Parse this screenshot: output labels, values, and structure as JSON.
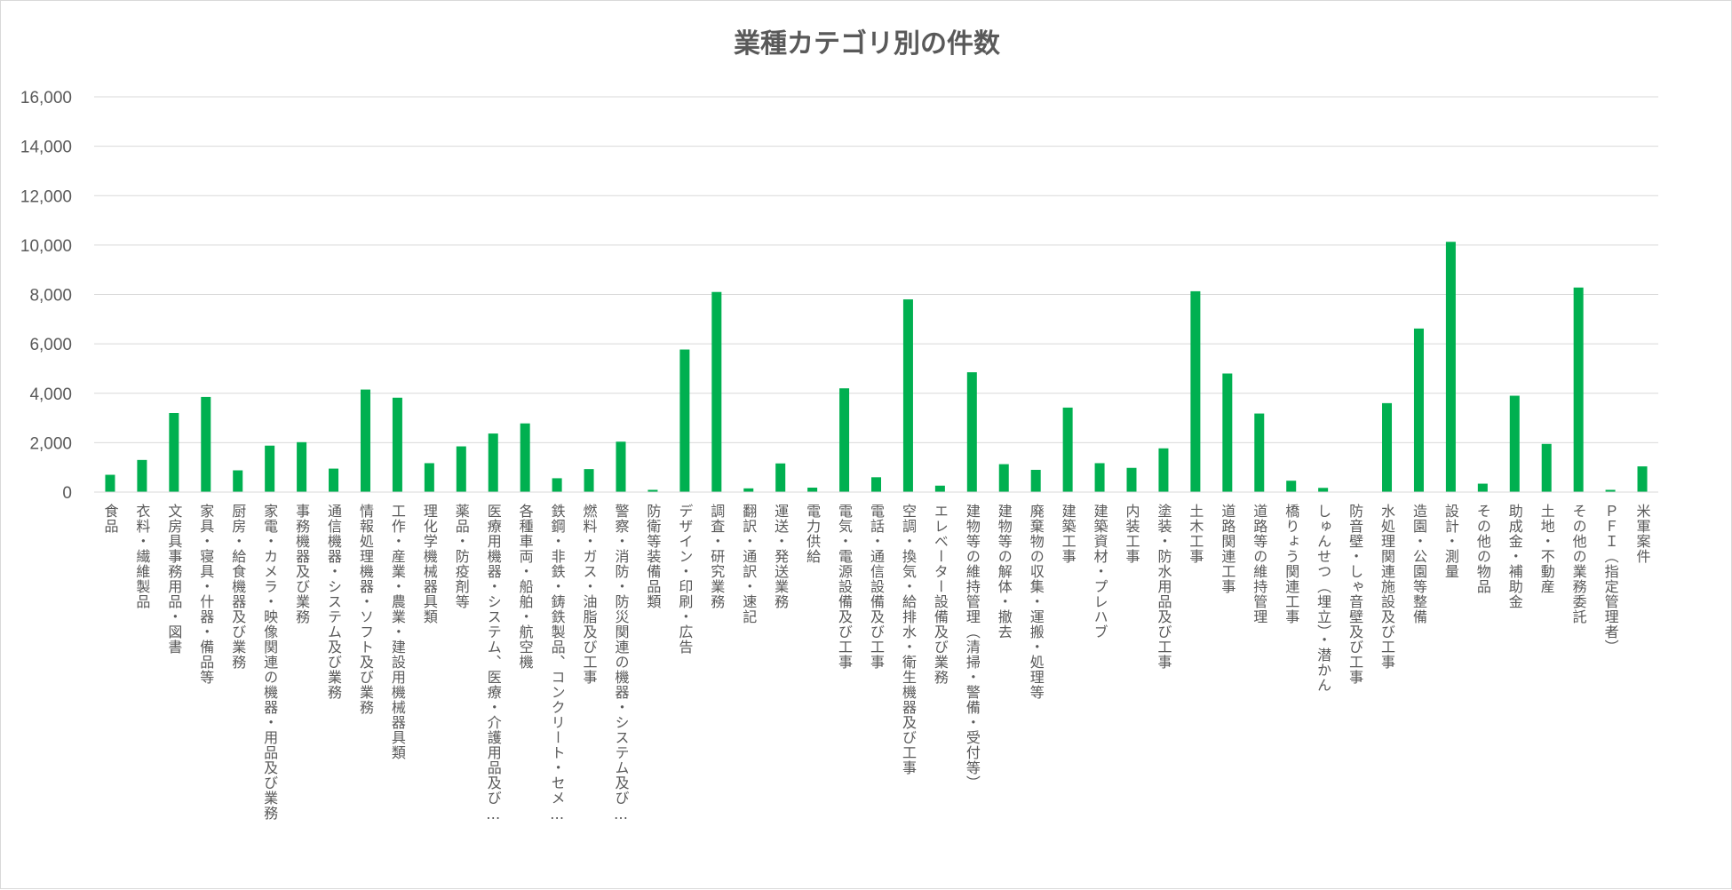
{
  "chart_data": {
    "type": "bar",
    "title": "業種カテゴリ別の件数",
    "xlabel": "",
    "ylabel": "",
    "ylim": [
      0,
      16000
    ],
    "yticks": [
      "0",
      "2,000",
      "4,000",
      "6,000",
      "8,000",
      "10,000",
      "12,000",
      "14,000",
      "16,000"
    ],
    "ytick_values": [
      0,
      2000,
      4000,
      6000,
      8000,
      10000,
      12000,
      14000,
      16000
    ],
    "grid": true,
    "legend": "none",
    "bar_color": "#00b050",
    "categories": [
      "食品",
      "衣料・繊維製品",
      "文房具事務用品・図書",
      "家具・寝具・什器・備品等",
      "厨房・給食機器及び業務",
      "家電・カメラ・映像関連の機器・用品及び業務",
      "事務機器及び業務",
      "通信機器・システム及び業務",
      "情報処理機器・ソフト及び業務",
      "工作・産業・農業・建設用機械器具類",
      "理化学機械器具類",
      "薬品・防疫剤等",
      "医療用機器・システム、医療・介護用品及び…",
      "各種車両・船舶・航空機",
      "鉄鋼・非鉄・鋳鉄製品、コンクリート・セメ…",
      "燃料・ガス・油脂及び工事",
      "警察・消防・防災関連の機器・システム及び…",
      "防衛等装備品類",
      "デザイン・印刷・広告",
      "調査・研究業務",
      "翻訳・通訳・速記",
      "運送・発送業務",
      "電力供給",
      "電気・電源設備及び工事",
      "電話・通信設備及び工事",
      "空調・換気・給排水・衛生機器及び工事",
      "エレベーター設備及び業務",
      "建物等の維持管理（清掃・警備・受付等）",
      "建物等の解体・撤去",
      "廃棄物の収集・運搬・処理等",
      "建築工事",
      "建築資材・プレハブ",
      "内装工事",
      "塗装・防水用品及び工事",
      "土木工事",
      "道路関連工事",
      "道路等の維持管理",
      "橋りょう関連工事",
      "しゅんせつ（埋立）・潜かん",
      "防音壁・しゃ音壁及び工事",
      "水処理関連施設及び工事",
      "造園・公園等整備",
      "設計・測量",
      "その他の物品",
      "助成金・補助金",
      "土地・不動産",
      "その他の業務委託",
      "ＰＦＩ（指定管理者）",
      "米軍案件"
    ],
    "values": [
      700,
      1300,
      3200,
      3850,
      880,
      1880,
      2020,
      950,
      4150,
      3820,
      1170,
      1850,
      2370,
      2780,
      560,
      930,
      2040,
      90,
      5770,
      8100,
      150,
      1160,
      180,
      4200,
      600,
      7800,
      260,
      4850,
      1130,
      900,
      3420,
      1170,
      980,
      1770,
      8130,
      4800,
      3180,
      460,
      170,
      20,
      3600,
      6620,
      10130,
      340,
      3900,
      1950,
      8280,
      90,
      1040
    ]
  }
}
